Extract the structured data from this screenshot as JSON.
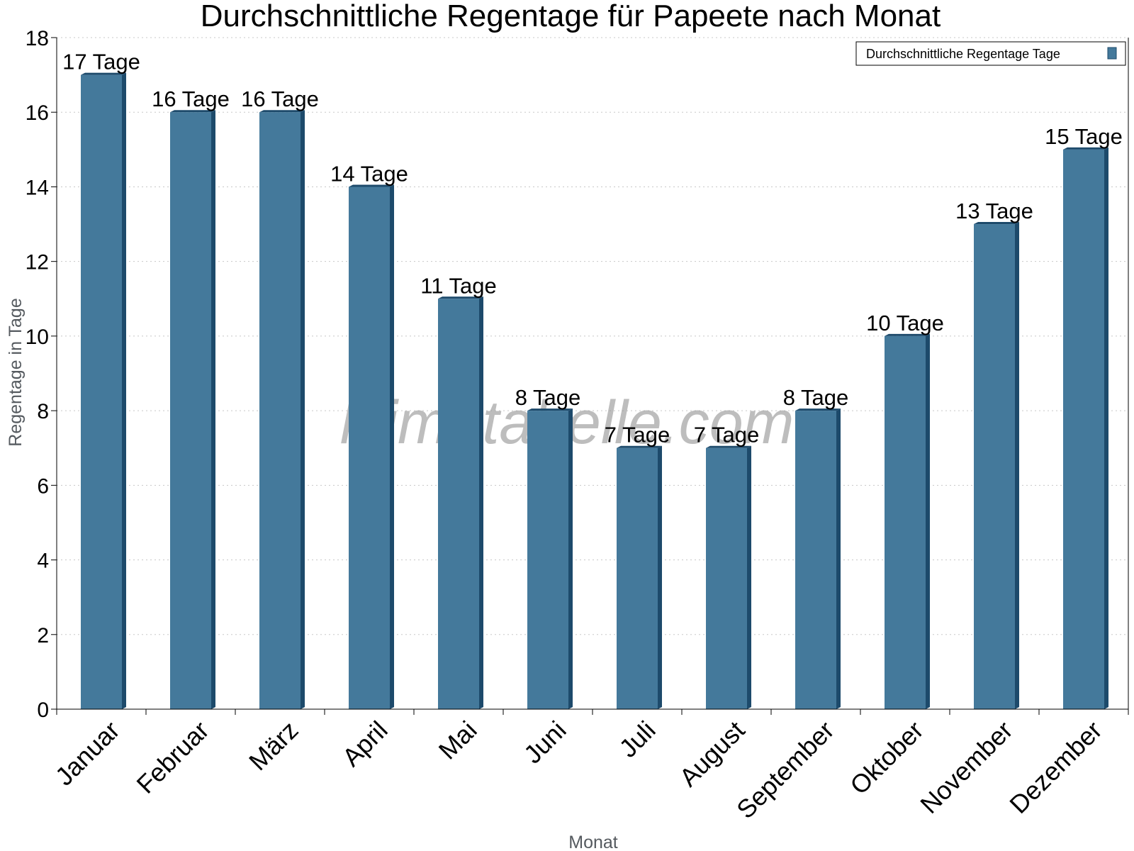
{
  "chart_data": {
    "type": "bar",
    "title": "Durchschnittliche Regentage für Papeete nach Monat",
    "xlabel": "Monat",
    "ylabel": "Regentage in Tage",
    "categories": [
      "Januar",
      "Februar",
      "März",
      "April",
      "Mai",
      "Juni",
      "Juli",
      "August",
      "September",
      "Oktober",
      "November",
      "Dezember"
    ],
    "series": [
      {
        "name": "Durchschnittliche Regentage Tage",
        "values": [
          17,
          16,
          16,
          14,
          11,
          8,
          7,
          7,
          8,
          10,
          13,
          15
        ],
        "labels": [
          "17 Tage",
          "16 Tage",
          "16 Tage",
          "14 Tage",
          "11 Tage",
          "8 Tage",
          "7 Tage",
          "7 Tage",
          "8 Tage",
          "10 Tage",
          "13 Tage",
          "15 Tage"
        ],
        "color": "#44799b",
        "side_color": "#1d4a6b"
      }
    ],
    "ylim": [
      0,
      18
    ],
    "yticks": [
      0,
      2,
      4,
      6,
      8,
      10,
      12,
      14,
      16,
      18
    ],
    "grid": true,
    "legend_position": "top-right"
  },
  "watermark": "klimatabelle.com"
}
